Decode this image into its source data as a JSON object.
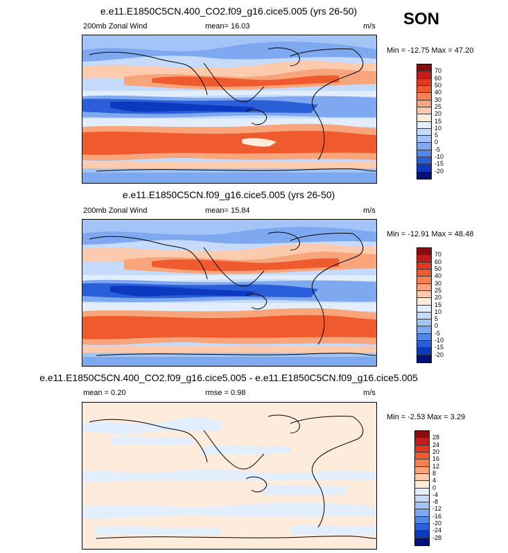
{
  "season": "SON",
  "panels": [
    {
      "title": "e.e11.E1850C5CN.400_CO2.f09_g16.cice5.005 (yrs 26-50)",
      "left_label": "200mb Zonal Wind",
      "mean_label": "mean=  16.03",
      "units": "m/s",
      "minmax": "Min = -12.75 Max =  47.20",
      "colorbar_labels": [
        "70",
        "60",
        "50",
        "40",
        "30",
        "25",
        "20",
        "15",
        "10",
        "5",
        "0",
        "-5",
        "-10",
        "-15",
        "-20"
      ],
      "colors": [
        "#8a0d0d",
        "#c11b1b",
        "#e0391f",
        "#ef5a2e",
        "#f58054",
        "#f9a57c",
        "#fccbae",
        "#fdebdc",
        "#e3eefc",
        "#c6dbfb",
        "#a3c4f6",
        "#7ea8ef",
        "#5485e7",
        "#2a5fd9",
        "#0d39bf",
        "#03107a"
      ]
    },
    {
      "title": "e.e11.E1850C5CN.f09_g16.cice5.005 (yrs 26-50)",
      "left_label": "200mb Zonal Wind",
      "mean_label": "mean=  15.84",
      "units": "m/s",
      "minmax": "Min = -12.91 Max =  48.48",
      "colorbar_labels": [
        "70",
        "60",
        "50",
        "40",
        "30",
        "25",
        "20",
        "15",
        "10",
        "5",
        "0",
        "-5",
        "-10",
        "-15",
        "-20"
      ],
      "colors": [
        "#8a0d0d",
        "#c11b1b",
        "#e0391f",
        "#ef5a2e",
        "#f58054",
        "#f9a57c",
        "#fccbae",
        "#fdebdc",
        "#e3eefc",
        "#c6dbfb",
        "#a3c4f6",
        "#7ea8ef",
        "#5485e7",
        "#2a5fd9",
        "#0d39bf",
        "#03107a"
      ]
    },
    {
      "title": "e.e11.E1850C5CN.400_CO2.f09_g16.cice5.005 - e.e11.E1850C5CN.f09_g16.cice5.005",
      "left_label": "mean =   0.20",
      "mean_label": "rmse =   0.98",
      "units": "m/s",
      "minmax": "Min =  -2.53 Max =   3.29",
      "colorbar_labels": [
        "28",
        "24",
        "20",
        "16",
        "12",
        "8",
        "4",
        "0",
        "-4",
        "-8",
        "-12",
        "-16",
        "-20",
        "-24",
        "-28"
      ],
      "colors": [
        "#8a0d0d",
        "#c11b1b",
        "#e0391f",
        "#ef5a2e",
        "#f58054",
        "#f9a57c",
        "#fccbae",
        "#fdebdc",
        "#e3eefc",
        "#c6dbfb",
        "#a3c4f6",
        "#7ea8ef",
        "#5485e7",
        "#2a5fd9",
        "#0d39bf",
        "#03107a"
      ]
    }
  ]
}
